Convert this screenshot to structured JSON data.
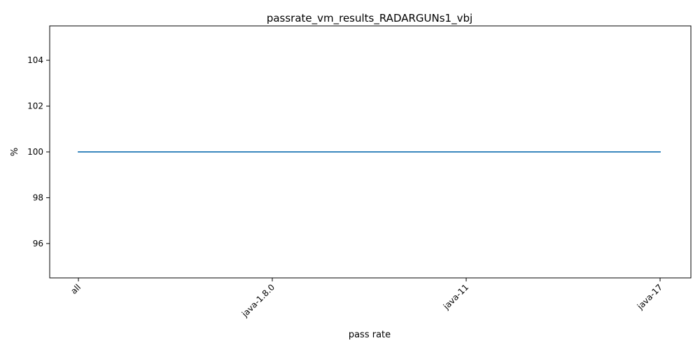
{
  "chart_data": {
    "type": "line",
    "title": "passrate_vm_results_RADARGUNs1_vbj",
    "xlabel": "pass rate",
    "ylabel": "%",
    "categories": [
      "all",
      "java-1.8.0",
      "java-11",
      "java-17"
    ],
    "series": [
      {
        "values": [
          100,
          100,
          100,
          100
        ],
        "color": "#1f77b4"
      }
    ],
    "ylim": [
      94.5,
      105.5
    ],
    "yticks": [
      96,
      98,
      100,
      102,
      104
    ],
    "grid": false,
    "legend": "none",
    "x_tick_rotation_deg": 45
  }
}
